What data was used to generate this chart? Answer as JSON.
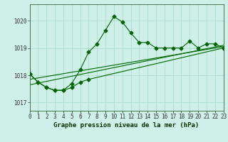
{
  "title": "Graphe pression niveau de la mer (hPa)",
  "bg_color": "#cff0e8",
  "line_color": "#006600",
  "grid_color": "#aaddcc",
  "x_min": 0,
  "x_max": 23,
  "y_min": 1016.7,
  "y_max": 1020.6,
  "yticks": [
    1017,
    1018,
    1019,
    1020
  ],
  "xticks": [
    0,
    1,
    2,
    3,
    4,
    5,
    6,
    7,
    8,
    9,
    10,
    11,
    12,
    13,
    14,
    15,
    16,
    17,
    18,
    19,
    20,
    21,
    22,
    23
  ],
  "series1_x": [
    0,
    1,
    2,
    3,
    4,
    5,
    6,
    7,
    8,
    9,
    10,
    11,
    12,
    13,
    14,
    15,
    16,
    17,
    18,
    19,
    20,
    21,
    22,
    23
  ],
  "series1_y": [
    1018.05,
    1017.75,
    1017.55,
    1017.45,
    1017.45,
    1017.7,
    1018.2,
    1018.85,
    1019.15,
    1019.65,
    1020.15,
    1019.95,
    1019.55,
    1019.2,
    1019.2,
    1019.0,
    1019.0,
    1019.0,
    1019.0,
    1019.25,
    1019.0,
    1019.15,
    1019.15,
    1019.0
  ],
  "series2_x": [
    0,
    1,
    2,
    3,
    4,
    5,
    6,
    7,
    23
  ],
  "series2_y": [
    1018.05,
    1017.75,
    1017.55,
    1017.45,
    1017.45,
    1017.55,
    1017.75,
    1017.85,
    1019.0
  ],
  "series3_x": [
    0,
    23
  ],
  "series3_y": [
    1017.85,
    1019.05
  ],
  "series4_x": [
    0,
    23
  ],
  "series4_y": [
    1017.65,
    1019.1
  ],
  "marker_size": 2.5,
  "linewidth": 0.8,
  "tick_fontsize": 5.5,
  "title_fontsize": 6.5
}
